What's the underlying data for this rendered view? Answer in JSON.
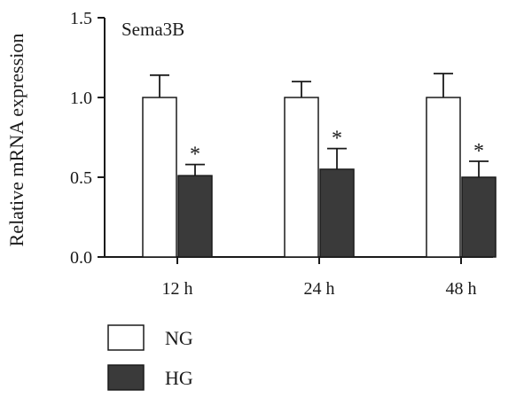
{
  "chart_data": {
    "type": "bar",
    "panel_label": "Sema3B",
    "ylabel": "Relative mRNA expression",
    "xlabel": "",
    "categories": [
      "12 h",
      "24 h",
      "48 h"
    ],
    "ylim": [
      0,
      1.5
    ],
    "yticks": [
      0.0,
      0.5,
      1.0,
      1.5
    ],
    "ytick_labels": [
      "0.0",
      "0.5",
      "1.0",
      "1.5"
    ],
    "series": [
      {
        "name": "NG",
        "values": [
          1.0,
          1.0,
          1.0
        ],
        "errors": [
          0.14,
          0.1,
          0.15
        ],
        "fill": "#ffffff",
        "stroke": "#1a1a1a"
      },
      {
        "name": "HG",
        "values": [
          0.51,
          0.55,
          0.5
        ],
        "errors": [
          0.07,
          0.13,
          0.1
        ],
        "fill": "#3a3a3a",
        "stroke": "#1a1a1a"
      }
    ],
    "significance": [
      "*",
      "*",
      "*"
    ],
    "grid": false,
    "legend_position": "bottom-left"
  }
}
